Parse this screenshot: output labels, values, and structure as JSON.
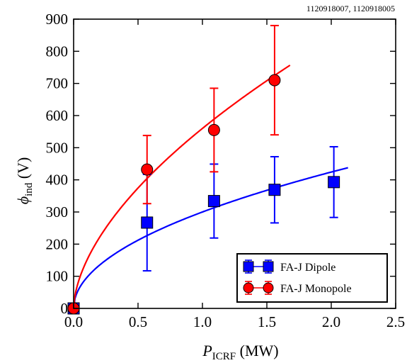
{
  "chart_data": {
    "type": "scatter",
    "annotation": "1120918007, 1120918005",
    "xlabel": {
      "main": "P",
      "sub": "ICRF",
      "unit": " (MW)"
    },
    "ylabel": {
      "main": "ϕ",
      "sub": "ind",
      "unit": " (V)"
    },
    "xlim": [
      0,
      2.5
    ],
    "ylim": [
      0,
      900
    ],
    "xticks": [
      0.0,
      0.5,
      1.0,
      1.5,
      2.0,
      2.5
    ],
    "xtick_labels": [
      "0.0",
      "0.5",
      "1.0",
      "1.5",
      "2.0",
      "2.5"
    ],
    "yticks": [
      0,
      100,
      200,
      300,
      400,
      500,
      600,
      700,
      800,
      900
    ],
    "ytick_labels": [
      "0",
      "100",
      "200",
      "300",
      "400",
      "500",
      "600",
      "700",
      "800",
      "900"
    ],
    "grid": false,
    "legend_position": "bottom-right",
    "series": [
      {
        "name": "FA-J Dipole",
        "marker": "square",
        "color": "#0000ff",
        "points": [
          {
            "x": 0.0,
            "y": 0,
            "err": 0
          },
          {
            "x": 0.57,
            "y": 267,
            "err": 150
          },
          {
            "x": 1.09,
            "y": 334,
            "err": 115
          },
          {
            "x": 1.56,
            "y": 369,
            "err": 103
          },
          {
            "x": 2.02,
            "y": 393,
            "err": 110
          }
        ],
        "fit": {
          "form": "power",
          "coef": 300,
          "exponent": 0.5,
          "x_max": 2.13
        }
      },
      {
        "name": "FA-J Monopole",
        "marker": "circle",
        "color": "#ff0000",
        "points": [
          {
            "x": 0.0,
            "y": 0,
            "err": 0
          },
          {
            "x": 0.57,
            "y": 432,
            "err": 106
          },
          {
            "x": 1.09,
            "y": 555,
            "err": 130
          },
          {
            "x": 1.56,
            "y": 710,
            "err": 170
          }
        ],
        "fit": {
          "form": "power",
          "coef": 560,
          "exponent": 0.58,
          "x_max": 1.68
        }
      }
    ]
  }
}
